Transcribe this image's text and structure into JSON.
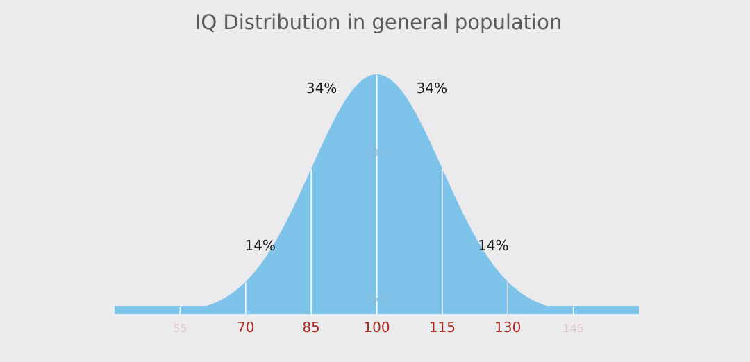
{
  "chart_data": {
    "type": "area",
    "title": "IQ Distribution in general population",
    "x_ticks": [
      {
        "value": 55,
        "label": "55",
        "faded": true
      },
      {
        "value": 70,
        "label": "70",
        "faded": false
      },
      {
        "value": 85,
        "label": "85",
        "faded": false
      },
      {
        "value": 100,
        "label": "100",
        "faded": false
      },
      {
        "value": 115,
        "label": "115",
        "faded": false
      },
      {
        "value": 130,
        "label": "130",
        "faded": false
      },
      {
        "value": 145,
        "label": "145",
        "faded": true
      }
    ],
    "xlim": [
      40,
      160
    ],
    "mean": 100,
    "std_dev": 15,
    "boundaries": [
      55,
      70,
      85,
      100,
      115,
      130,
      145
    ],
    "segment_labels": [
      {
        "from": 85,
        "to": 100,
        "label": "34%"
      },
      {
        "from": 100,
        "to": 115,
        "label": "34%"
      },
      {
        "from": 70,
        "to": 85,
        "label": "14%"
      },
      {
        "from": 115,
        "to": 130,
        "label": "14%"
      }
    ],
    "range_labels": [
      {
        "range": [
          85,
          115
        ],
        "label": "68%"
      },
      {
        "range": [
          70,
          130
        ],
        "label": "95%"
      }
    ],
    "grid": false,
    "legend": "none"
  },
  "colors": {
    "fill": "#7ec3ea",
    "divider": "#ffffff",
    "tick_label": "#b3261e",
    "percent_label": "#1e1e1e",
    "title": "#5b5b5b",
    "background": "#ebebed"
  }
}
